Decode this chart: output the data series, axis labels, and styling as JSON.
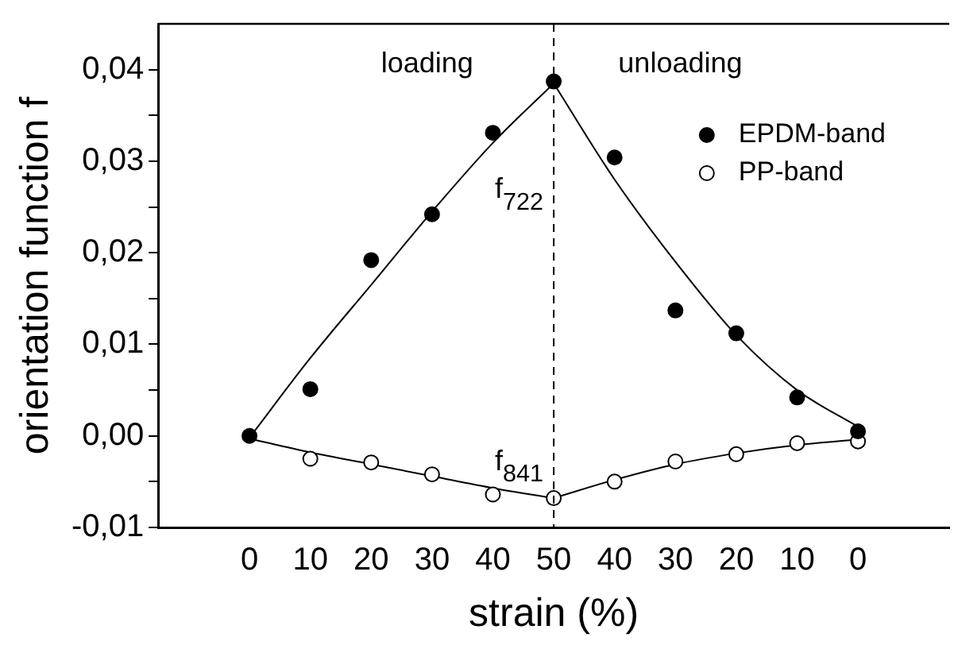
{
  "chart_data": {
    "type": "scatter",
    "xlabel": "strain (%)",
    "ylabel": "orientation function f",
    "categories": [
      null,
      "0",
      "10",
      "20",
      "30",
      "40",
      "50",
      "40",
      "30",
      "20",
      "10",
      "0",
      null
    ],
    "ylim": [
      -0.01,
      0.045
    ],
    "yticks": [
      {
        "value": -0.01,
        "label": "-0,01"
      },
      {
        "value": -0.005,
        "label": null
      },
      {
        "value": 0,
        "label": "0,00"
      },
      {
        "value": 0.005,
        "label": null
      },
      {
        "value": 0.01,
        "label": "0,01"
      },
      {
        "value": 0.015,
        "label": null
      },
      {
        "value": 0.02,
        "label": "0,02"
      },
      {
        "value": 0.025,
        "label": null
      },
      {
        "value": 0.03,
        "label": "0,03"
      },
      {
        "value": 0.035,
        "label": null
      },
      {
        "value": 0.04,
        "label": "0,04"
      }
    ],
    "series": [
      {
        "name": "EPDM-band",
        "marker": "circle",
        "color": "#000000",
        "values": [
          null,
          0.0,
          0.0051,
          0.0192,
          0.0242,
          0.0331,
          0.0387,
          0.0304,
          0.0137,
          0.0112,
          0.0042,
          0.0005,
          null
        ]
      },
      {
        "name": "PP-band",
        "marker": "circle",
        "color": "#ffffff",
        "values": [
          null,
          null,
          -0.0025,
          -0.0029,
          -0.0042,
          -0.0064,
          -0.0068,
          -0.005,
          -0.0028,
          -0.002,
          -0.0008,
          -0.0006,
          null
        ]
      },
      {
        "type": "line",
        "marker": "none",
        "color": "#000000",
        "values": [
          null,
          -0.0002,
          0.0085,
          0.0165,
          0.0245,
          0.032,
          0.0385,
          null,
          null,
          null,
          null,
          null,
          null
        ]
      },
      {
        "type": "line",
        "marker": "none",
        "color": "#000000",
        "values": [
          null,
          null,
          null,
          null,
          null,
          null,
          0.0385,
          0.028,
          0.019,
          0.011,
          0.005,
          0.001,
          null
        ]
      },
      {
        "type": "line",
        "marker": "none",
        "color": "#000000",
        "values": [
          null,
          -0.0003,
          -0.0018,
          -0.0031,
          -0.0044,
          -0.0057,
          -0.0068,
          null,
          null,
          null,
          null,
          null,
          null
        ]
      },
      {
        "type": "line",
        "marker": "none",
        "color": "#000000",
        "values": [
          null,
          null,
          null,
          null,
          null,
          null,
          -0.0068,
          -0.0048,
          -0.0031,
          -0.0019,
          -0.001,
          -0.0004,
          null
        ]
      }
    ],
    "ref_lines": [
      {
        "axis": "x",
        "value": "50",
        "line_style": "dashed",
        "color": "#000000"
      }
    ],
    "annotations": [
      "loading",
      "unloading",
      "f$_{722}$",
      "f$_{841}$"
    ],
    "legend": "top right",
    "grid": false
  }
}
